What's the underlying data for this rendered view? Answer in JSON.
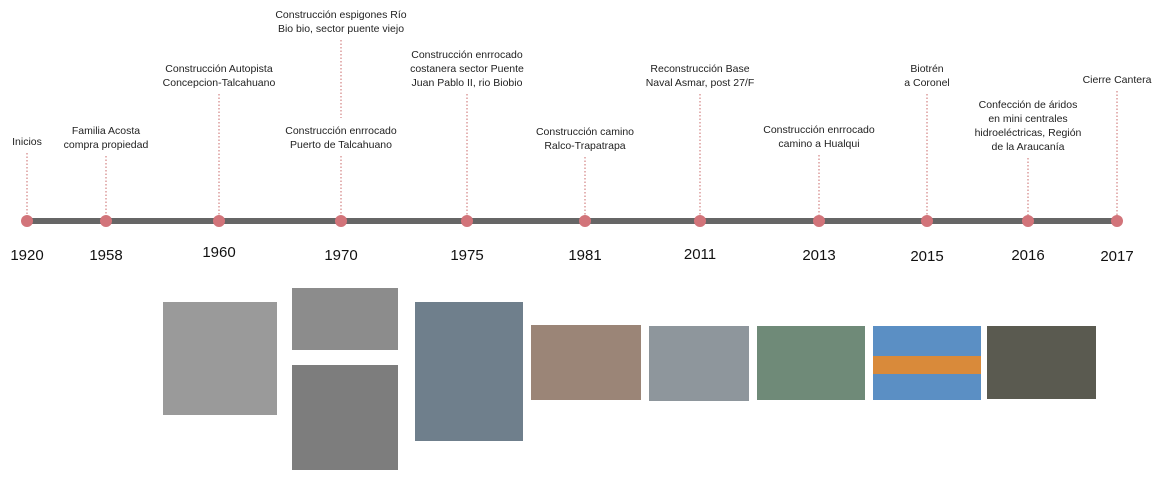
{
  "events": [
    {
      "year": "1920",
      "labels": [
        [
          "Inicios"
        ]
      ]
    },
    {
      "year": "1958",
      "labels": [
        [
          "Familia Acosta",
          "compra propiedad"
        ]
      ]
    },
    {
      "year": "1960",
      "labels": [
        [
          "Construcción Autopista",
          "Concepcion-Talcahuano"
        ]
      ]
    },
    {
      "year": "1970",
      "labels": [
        [
          "Construcción espigones Río",
          "Bio bio, sector puente viejo"
        ],
        [
          "Construcción enrrocado",
          "Puerto de Talcahuano"
        ]
      ]
    },
    {
      "year": "1975",
      "labels": [
        [
          "Construcción enrrocado",
          "costanera sector Puente",
          "Juan Pablo II, rio Biobio"
        ]
      ]
    },
    {
      "year": "1981",
      "labels": [
        [
          "Construcción camino",
          "Ralco-Trapatrapa"
        ]
      ]
    },
    {
      "year": "2011",
      "labels": [
        [
          "Reconstrucción Base",
          "Naval Asmar, post 27/F"
        ]
      ]
    },
    {
      "year": "2013",
      "labels": [
        [
          "Construcción enrrocado",
          "camino a Hualqui"
        ]
      ]
    },
    {
      "year": "2015",
      "labels": [
        [
          "Biotrén",
          "a Coronel"
        ]
      ]
    },
    {
      "year": "2016",
      "labels": [
        [
          "Confección de áridos",
          "en mini centrales",
          "hidroeléctricas, Región",
          "de la Araucanía"
        ]
      ]
    },
    {
      "year": "2017",
      "labels": [
        [
          "Cierre Cantera"
        ]
      ]
    }
  ]
}
